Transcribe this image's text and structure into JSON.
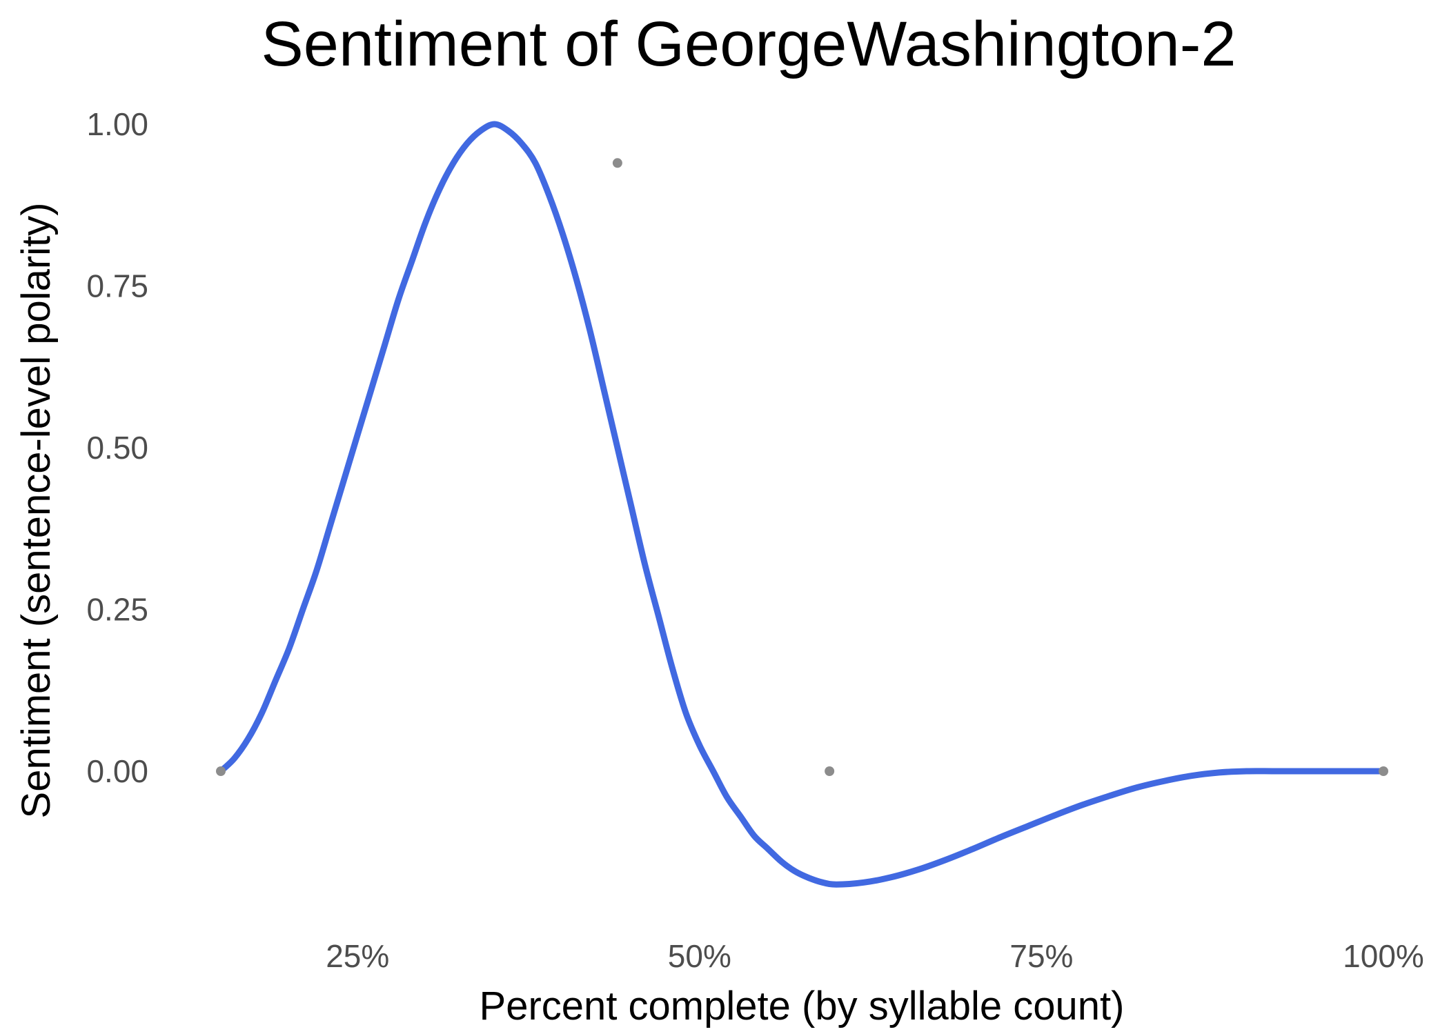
{
  "chart_data": {
    "type": "line",
    "title": "Sentiment of GeorgeWashington-2",
    "xlabel": "Percent complete (by syllable count)",
    "ylabel": "Sentiment (sentence-level polarity)",
    "x_ticks": [
      {
        "value": 25,
        "label": "25%"
      },
      {
        "value": 50,
        "label": "50%"
      },
      {
        "value": 75,
        "label": "75%"
      },
      {
        "value": 100,
        "label": "100%"
      }
    ],
    "y_ticks": [
      {
        "value": 0,
        "label": "0.00"
      },
      {
        "value": 0.25,
        "label": "0.25"
      },
      {
        "value": 0.5,
        "label": "0.50"
      },
      {
        "value": 0.75,
        "label": "0.75"
      },
      {
        "value": 1,
        "label": "1.00"
      }
    ],
    "xlim": [
      15,
      100
    ],
    "ylim": [
      -0.17,
      1.0
    ],
    "grid": false,
    "legend": "none",
    "colors": {
      "line": "#4169E1",
      "point": "#8c8c8c"
    },
    "series": [
      {
        "x": [
          15,
          16,
          17,
          18,
          19,
          20,
          21,
          22,
          23,
          24,
          25,
          26,
          27,
          28,
          29,
          30,
          31,
          32,
          33,
          34,
          35,
          36,
          37,
          38,
          39,
          40,
          41,
          42,
          43,
          44,
          45,
          46,
          47,
          48,
          49,
          50,
          51,
          52,
          53,
          54,
          55,
          56,
          57,
          58,
          59,
          60,
          62,
          64,
          66,
          68,
          70,
          72,
          74,
          76,
          78,
          80,
          82,
          84,
          86,
          88,
          90,
          92,
          94,
          96,
          98,
          100
        ],
        "values": [
          0.0,
          0.02,
          0.05,
          0.09,
          0.14,
          0.19,
          0.25,
          0.31,
          0.38,
          0.45,
          0.52,
          0.59,
          0.66,
          0.73,
          0.79,
          0.85,
          0.9,
          0.94,
          0.97,
          0.99,
          1.0,
          0.99,
          0.97,
          0.94,
          0.89,
          0.83,
          0.76,
          0.68,
          0.59,
          0.5,
          0.41,
          0.32,
          0.24,
          0.16,
          0.09,
          0.04,
          0.0,
          -0.04,
          -0.07,
          -0.1,
          -0.12,
          -0.14,
          -0.155,
          -0.165,
          -0.172,
          -0.175,
          -0.172,
          -0.164,
          -0.152,
          -0.137,
          -0.12,
          -0.102,
          -0.085,
          -0.068,
          -0.052,
          -0.038,
          -0.025,
          -0.015,
          -0.007,
          -0.002,
          0.0,
          0.0,
          0.0,
          0.0,
          0.0,
          0.0
        ]
      }
    ],
    "points": [
      {
        "x": 15,
        "y": 0.0
      },
      {
        "x": 44,
        "y": 0.94
      },
      {
        "x": 59.5,
        "y": 0.0
      },
      {
        "x": 100,
        "y": 0.0
      }
    ]
  }
}
